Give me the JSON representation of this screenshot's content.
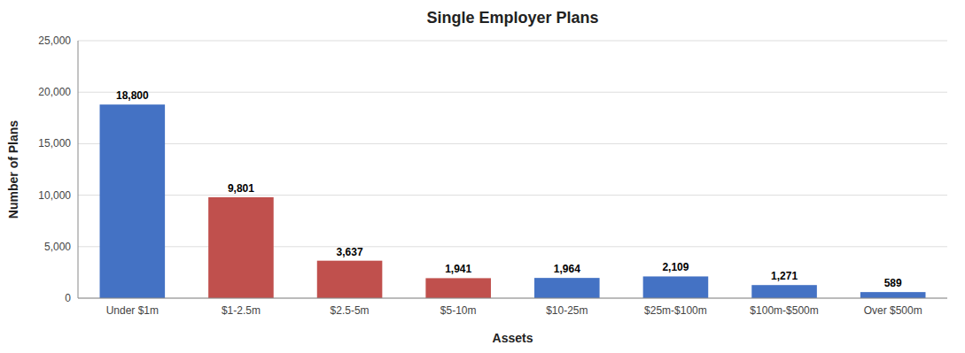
{
  "chart_data": {
    "type": "bar",
    "title": "Single Employer Plans",
    "xlabel": "Assets",
    "ylabel": "Number of Plans",
    "categories": [
      "Under $1m",
      "$1-2.5m",
      "$2.5-5m",
      "$5-10m",
      "$10-25m",
      "$25m-$100m",
      "$100m-$500m",
      "Over $500m"
    ],
    "values": [
      18800,
      9801,
      3637,
      1941,
      1964,
      2109,
      1271,
      589
    ],
    "value_labels": [
      "18,800",
      "9,801",
      "3,637",
      "1,941",
      "1,964",
      "2,109",
      "1,271",
      "589"
    ],
    "colors": [
      "#4472C4",
      "#C0504D",
      "#C0504D",
      "#C0504D",
      "#4472C4",
      "#4472C4",
      "#4472C4",
      "#4472C4"
    ],
    "ylim": [
      0,
      25000
    ],
    "yticks": [
      0,
      {
        "value": 5000,
        "label": "5,000"
      },
      {
        "value": 10000,
        "label": "10,000"
      },
      {
        "value": 15000,
        "label": "15,000"
      },
      {
        "value": 20000,
        "label": "20,000"
      },
      {
        "value": 25000,
        "label": "25,000"
      }
    ],
    "grid": true,
    "data_labels": true
  }
}
